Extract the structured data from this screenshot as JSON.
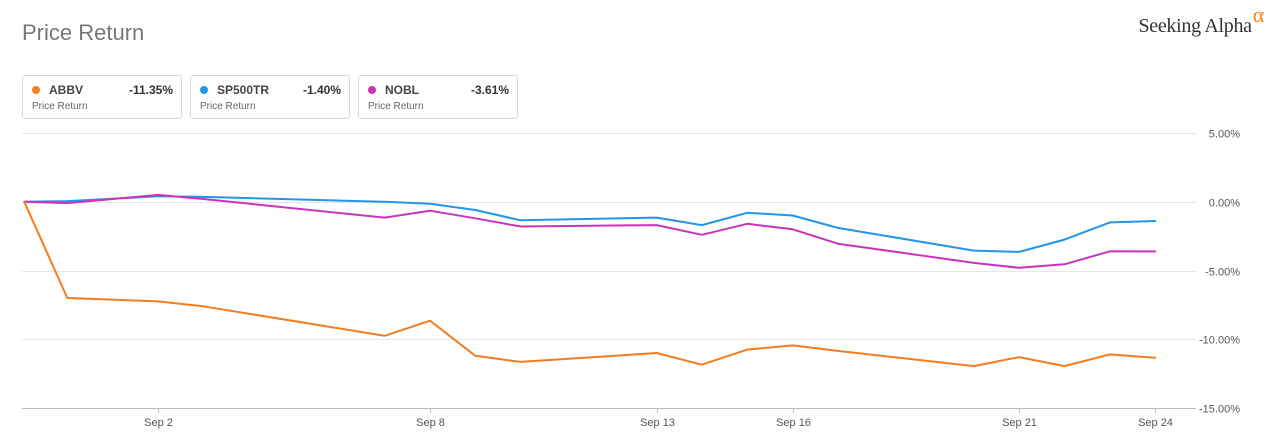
{
  "header": {
    "title": "Price Return",
    "brand": "Seeking Alpha",
    "brand_symbol": "α",
    "brand_accent": "#f58220"
  },
  "legend": [
    {
      "ticker": "ABBV",
      "value": "-11.35%",
      "subtitle": "Price Return",
      "color": "#f57c1f"
    },
    {
      "ticker": "SP500TR",
      "value": "-1.40%",
      "subtitle": "Price Return",
      "color": "#2196e8"
    },
    {
      "ticker": "NOBL",
      "value": "-3.61%",
      "subtitle": "Price Return",
      "color": "#cc33bb"
    }
  ],
  "chart_data": {
    "type": "line",
    "title": "Price Return",
    "xlabel": "",
    "ylabel": "",
    "ylim": [
      -15,
      5
    ],
    "xlim": [
      -2,
      23.9
    ],
    "y_ticks": [
      5,
      0,
      -5,
      -10,
      -15
    ],
    "y_tick_labels": [
      "5.00%",
      "0.00%",
      "-5.00%",
      "-10.00%",
      "-15.00%"
    ],
    "x_ticks": [
      1,
      7,
      12,
      15,
      20,
      23
    ],
    "x_tick_labels": [
      "Sep 2",
      "Sep 8",
      "Sep 13",
      "Sep 16",
      "Sep 21",
      "Sep 24"
    ],
    "x_note": "x values are September calendar days minus 1 (0 = Aug 31)",
    "series": [
      {
        "name": "ABBV",
        "color": "#f57c1f",
        "x": [
          -1.95,
          -1,
          1,
          2,
          6,
          7,
          8,
          9,
          12,
          13,
          14,
          15,
          16,
          19,
          20,
          21,
          22,
          23
        ],
        "y": [
          0,
          -7.0,
          -7.25,
          -7.6,
          -9.75,
          -8.65,
          -11.2,
          -11.65,
          -11.0,
          -11.85,
          -10.75,
          -10.45,
          -10.85,
          -11.95,
          -11.3,
          -11.95,
          -11.1,
          -11.35
        ]
      },
      {
        "name": "SP500TR",
        "color": "#2196e8",
        "x": [
          -1.95,
          -1,
          1,
          2,
          6,
          7,
          8,
          9,
          12,
          13,
          14,
          15,
          16,
          19,
          20,
          21,
          22,
          23
        ],
        "y": [
          0,
          0.05,
          0.4,
          0.35,
          0.0,
          -0.15,
          -0.6,
          -1.35,
          -1.15,
          -1.7,
          -0.8,
          -1.0,
          -1.9,
          -3.55,
          -3.65,
          -2.75,
          -1.5,
          -1.4
        ]
      },
      {
        "name": "NOBL",
        "color": "#cc33bb",
        "x": [
          -1.95,
          -1,
          1,
          2,
          6,
          7,
          8,
          9,
          12,
          13,
          14,
          15,
          16,
          19,
          20,
          21,
          22,
          23
        ],
        "y": [
          0,
          -0.1,
          0.5,
          0.2,
          -1.15,
          -0.65,
          -1.2,
          -1.8,
          -1.7,
          -2.4,
          -1.6,
          -2.0,
          -3.05,
          -4.45,
          -4.8,
          -4.55,
          -3.6,
          -3.61
        ]
      }
    ]
  }
}
